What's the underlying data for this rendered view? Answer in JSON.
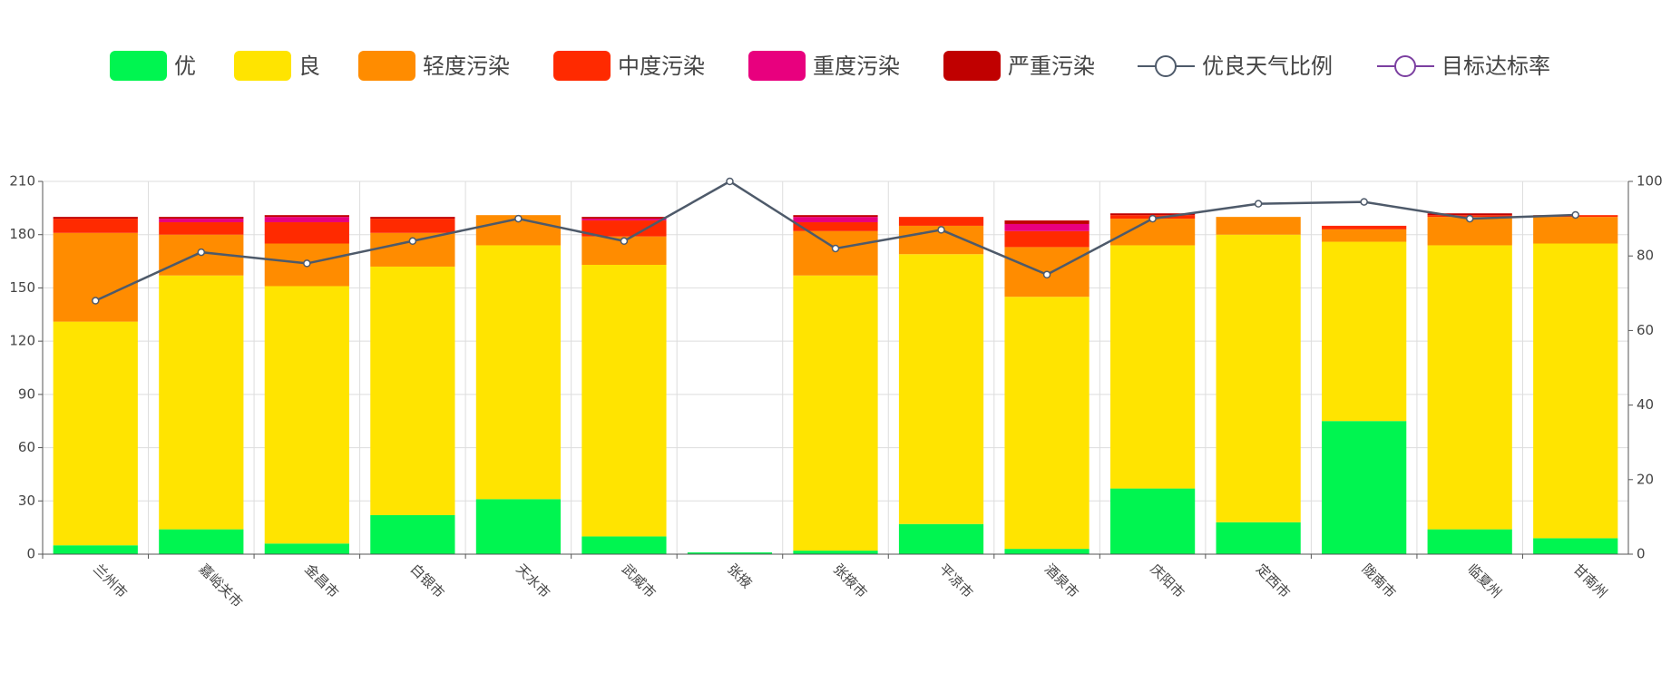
{
  "chart_data": {
    "type": "bar",
    "categories": [
      "兰州市",
      "嘉峪关市",
      "金昌市",
      "白银市",
      "天水市",
      "武威市",
      "张掖",
      "张掖市",
      "平凉市",
      "酒泉市",
      "庆阳市",
      "定西市",
      "陇南市",
      "临夏州",
      "甘南州"
    ],
    "series": [
      {
        "name": "优",
        "color": "#00f550",
        "values": [
          5,
          14,
          6,
          22,
          31,
          10,
          1,
          2,
          17,
          3,
          37,
          18,
          75,
          14,
          9
        ]
      },
      {
        "name": "良",
        "color": "#ffe400",
        "values": [
          126,
          143,
          145,
          140,
          143,
          153,
          0,
          155,
          152,
          142,
          137,
          162,
          101,
          160,
          166
        ]
      },
      {
        "name": "轻度污染",
        "color": "#ff8c00",
        "values": [
          50,
          23,
          24,
          19,
          17,
          16,
          0,
          25,
          16,
          28,
          15,
          10,
          7,
          16,
          15
        ]
      },
      {
        "name": "中度污染",
        "color": "#ff2a00",
        "values": [
          8,
          7,
          12,
          8,
          0,
          9,
          0,
          5,
          5,
          9,
          2,
          0,
          2,
          1,
          1
        ]
      },
      {
        "name": "重度污染",
        "color": "#e8007e",
        "values": [
          0,
          2,
          3,
          0,
          0,
          1,
          0,
          3,
          0,
          4,
          0,
          0,
          0,
          0,
          0
        ]
      },
      {
        "name": "严重污染",
        "color": "#c00000",
        "values": [
          1,
          1,
          1,
          1,
          0,
          1,
          0,
          1,
          0,
          2,
          1,
          0,
          0,
          1,
          0
        ]
      },
      {
        "name": "优良天气比例",
        "color": "#4e5a6a",
        "type": "line",
        "axis": "y2",
        "values": [
          68,
          81,
          78,
          84,
          90,
          84,
          100,
          82,
          87,
          75,
          90,
          94,
          94.5,
          90,
          91
        ]
      },
      {
        "name": "目标达标率",
        "color": "#7b3fa0",
        "type": "line",
        "axis": "y2",
        "values": [
          null,
          null,
          null,
          null,
          null,
          null,
          null,
          null,
          null,
          null,
          null,
          null,
          null,
          null,
          null
        ]
      }
    ],
    "ylim": [
      0,
      210
    ],
    "yticks": [
      0,
      30,
      60,
      90,
      120,
      150,
      180,
      210
    ],
    "y2lim": [
      0,
      100
    ],
    "y2ticks": [
      0,
      20,
      40,
      60,
      80,
      100
    ],
    "grid": true,
    "legend": "top"
  }
}
